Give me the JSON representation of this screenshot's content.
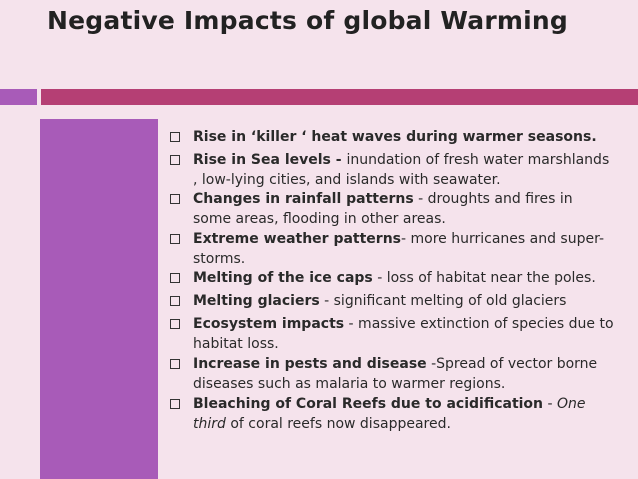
{
  "title": "Negative Impacts of global Warming",
  "colors": {
    "background": "#f5e3ec",
    "accent_purple": "#a85bb8",
    "accent_magenta": "#b53f74"
  },
  "items": [
    {
      "bold": "Rise in ‘killer ‘ heat waves during warmer seasons.",
      "rest": ""
    },
    {
      "bold": "Rise in  Sea levels - ",
      "rest": " inundation of fresh water marshlands , low-lying cities, and islands with seawater."
    },
    {
      "bold": "Changes in rainfall patterns",
      "rest": " - droughts and fires in some areas, flooding in other areas."
    },
    {
      "bold": "Extreme  weather  patterns",
      "rest": "- more  hurricanes and super-storms."
    },
    {
      "bold": "Melting of the ice caps",
      "rest": " - loss of habitat near the poles."
    },
    {
      "bold": "Melting glaciers",
      "rest": " - significant melting of old glaciers"
    },
    {
      "bold": "Ecosystem impacts",
      "rest": " - massive extinction of species due to  habitat loss."
    },
    {
      "bold": "Increase in pests and  disease",
      "rest": " -Spread of  vector borne  diseases such as malaria to  warmer regions."
    },
    {
      "bold": "Bleaching of Coral Reefs due to acidification",
      "rest": " - ",
      "italic": "One third",
      "rest2": " of coral reefs now disappeared."
    }
  ]
}
